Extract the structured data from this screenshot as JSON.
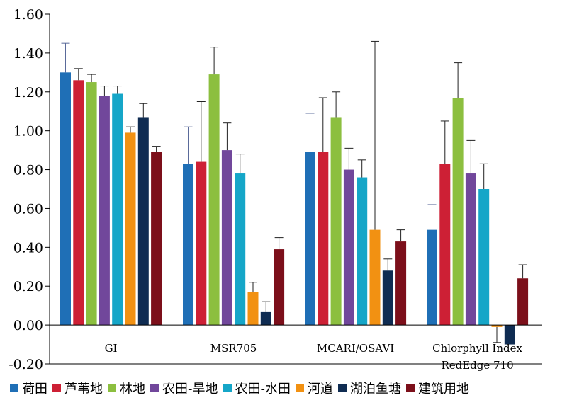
{
  "chart_data": {
    "type": "bar",
    "categories": [
      "GI",
      "MSR705",
      "MCARI/OSAVI",
      "Chlorphyll Index\nRedEdge 710"
    ],
    "ylim": [
      -0.2,
      1.6
    ],
    "yticks": [
      -0.2,
      0.0,
      0.2,
      0.4,
      0.6,
      0.8,
      1.0,
      1.2,
      1.4,
      1.6
    ],
    "ytick_labels": [
      "-0.20",
      "0.00",
      "0.20",
      "0.40",
      "0.60",
      "0.80",
      "1.00",
      "1.20",
      "1.40",
      "1.60"
    ],
    "grid": false,
    "legend_position": "bottom",
    "series": [
      {
        "name": "荷田",
        "color": "#1f6fb6",
        "values": [
          1.3,
          0.83,
          0.89,
          0.49
        ],
        "errors": [
          0.15,
          0.19,
          0.2,
          0.13
        ]
      },
      {
        "name": "芦苇地",
        "color": "#cd2035",
        "values": [
          1.26,
          0.84,
          0.89,
          0.83
        ],
        "errors": [
          0.06,
          0.31,
          0.28,
          0.22
        ]
      },
      {
        "name": "林地",
        "color": "#8cbf3f",
        "values": [
          1.25,
          1.29,
          1.07,
          1.17
        ],
        "errors": [
          0.04,
          0.14,
          0.13,
          0.18
        ]
      },
      {
        "name": "农田-旱地",
        "color": "#71479b",
        "values": [
          1.18,
          0.9,
          0.8,
          0.78
        ],
        "errors": [
          0.05,
          0.14,
          0.11,
          0.17
        ]
      },
      {
        "name": "农田-水田",
        "color": "#15a6c8",
        "values": [
          1.19,
          0.78,
          0.76,
          0.7
        ],
        "errors": [
          0.04,
          0.1,
          0.09,
          0.13
        ]
      },
      {
        "name": "河道",
        "color": "#f29112",
        "values": [
          0.99,
          0.17,
          0.49,
          -0.01
        ],
        "errors": [
          0.03,
          0.05,
          0.97,
          0.08
        ]
      },
      {
        "name": "湖泊鱼塘",
        "color": "#0f2c52",
        "values": [
          1.07,
          0.07,
          0.28,
          -0.1
        ],
        "errors": [
          0.07,
          0.05,
          0.06,
          0.0
        ]
      },
      {
        "name": "建筑用地",
        "color": "#7c0f1a",
        "values": [
          0.89,
          0.39,
          0.43,
          0.24
        ],
        "errors": [
          0.03,
          0.06,
          0.06,
          0.07
        ]
      }
    ]
  }
}
